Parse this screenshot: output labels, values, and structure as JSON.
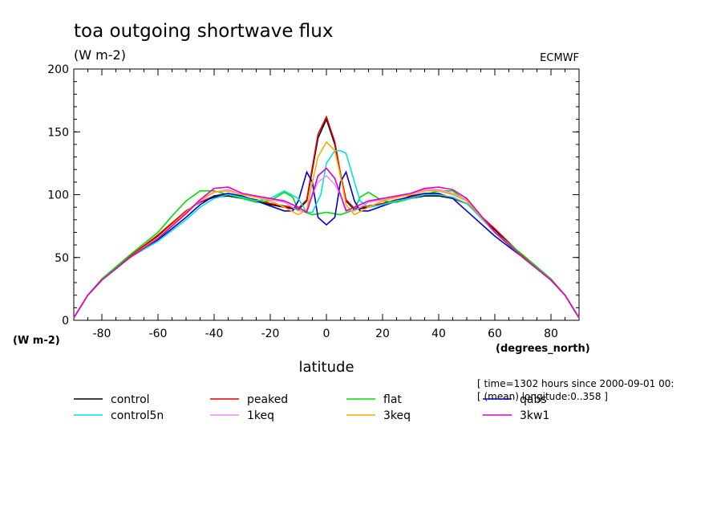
{
  "chart_data": {
    "type": "line",
    "title": "toa outgoing shortwave flux",
    "units": "(W m-2)",
    "source": "ECMWF",
    "ylabel_bottom": "(W m-2)",
    "xunits": "(degrees_north)",
    "xlabel": "latitude",
    "info_lines": [
      "[ time=1302 hours since 2000-09-01 00:",
      "[ (mean) longitude:0..358 ]"
    ],
    "xlim": [
      -90,
      90
    ],
    "ylim": [
      0,
      200
    ],
    "xticks": [
      -80,
      -60,
      -40,
      -20,
      0,
      20,
      40,
      60,
      80
    ],
    "yticks": [
      0,
      50,
      100,
      150,
      200
    ],
    "series": [
      {
        "name": "control",
        "color": "#000000",
        "x": [
          -90,
          -85,
          -80,
          -70,
          -60,
          -50,
          -45,
          -40,
          -35,
          -30,
          -25,
          -20,
          -15,
          -10,
          -7,
          -5,
          -3,
          0,
          3,
          5,
          7,
          10,
          15,
          20,
          25,
          30,
          35,
          40,
          45,
          50,
          60,
          70,
          80,
          85,
          90
        ],
        "y": [
          2,
          20,
          32,
          50,
          67,
          87,
          94,
          98,
          99,
          97,
          95,
          92,
          90,
          88,
          95,
          120,
          145,
          160,
          140,
          115,
          95,
          88,
          90,
          92,
          95,
          97,
          99,
          99,
          97,
          93,
          72,
          50,
          32,
          20,
          2
        ]
      },
      {
        "name": "peaked",
        "color": "#e60000",
        "x": [
          -90,
          -85,
          -80,
          -70,
          -60,
          -50,
          -45,
          -40,
          -35,
          -30,
          -25,
          -20,
          -15,
          -10,
          -7,
          -5,
          -3,
          0,
          3,
          5,
          7,
          10,
          15,
          20,
          25,
          30,
          35,
          40,
          45,
          50,
          60,
          70,
          80,
          85,
          90
        ],
        "y": [
          2,
          20,
          33,
          51,
          68,
          87,
          94,
          99,
          100,
          98,
          96,
          93,
          91,
          89,
          96,
          122,
          148,
          162,
          142,
          117,
          96,
          89,
          91,
          93,
          96,
          98,
          100,
          100,
          97,
          93,
          73,
          51,
          33,
          20,
          2
        ]
      },
      {
        "name": "flat",
        "color": "#00dd00",
        "x": [
          -90,
          -85,
          -80,
          -70,
          -60,
          -55,
          -50,
          -45,
          -40,
          -35,
          -30,
          -25,
          -20,
          -15,
          -12,
          -10,
          -5,
          0,
          5,
          10,
          12,
          15,
          20,
          25,
          30,
          35,
          40,
          45,
          50,
          55,
          60,
          70,
          80,
          85,
          90
        ],
        "y": [
          2,
          20,
          33,
          52,
          70,
          83,
          95,
          103,
          103,
          100,
          97,
          94,
          95,
          102,
          98,
          88,
          84,
          86,
          84,
          88,
          98,
          102,
          95,
          94,
          97,
          100,
          103,
          103,
          95,
          83,
          70,
          52,
          33,
          20,
          2
        ]
      },
      {
        "name": "qabs",
        "color": "#0000cc",
        "x": [
          -90,
          -85,
          -80,
          -70,
          -60,
          -50,
          -45,
          -40,
          -35,
          -30,
          -25,
          -20,
          -15,
          -12,
          -10,
          -7,
          -5,
          -3,
          0,
          3,
          5,
          7,
          10,
          12,
          15,
          20,
          25,
          30,
          35,
          40,
          45,
          50,
          60,
          70,
          80,
          85,
          90
        ],
        "y": [
          2,
          20,
          32,
          50,
          64,
          82,
          92,
          99,
          101,
          99,
          95,
          91,
          87,
          87,
          95,
          118,
          110,
          82,
          76,
          82,
          110,
          118,
          95,
          87,
          87,
          91,
          95,
          99,
          101,
          101,
          97,
          87,
          67,
          50,
          32,
          20,
          2
        ]
      },
      {
        "name": "control5n",
        "color": "#00e0e0",
        "x": [
          -90,
          -85,
          -80,
          -70,
          -60,
          -50,
          -45,
          -40,
          -35,
          -30,
          -25,
          -20,
          -15,
          -10,
          -7,
          -5,
          -2,
          0,
          3,
          5,
          7,
          10,
          12,
          15,
          20,
          25,
          30,
          35,
          40,
          45,
          50,
          60,
          70,
          80,
          85,
          90
        ],
        "y": [
          2,
          20,
          32,
          50,
          63,
          80,
          90,
          97,
          100,
          98,
          95,
          97,
          103,
          97,
          86,
          86,
          100,
          125,
          135,
          135,
          133,
          110,
          95,
          90,
          92,
          95,
          97,
          100,
          100,
          98,
          93,
          70,
          50,
          32,
          20,
          2
        ]
      },
      {
        "name": "1keq",
        "color": "#ee90ee",
        "x": [
          -90,
          -85,
          -80,
          -70,
          -60,
          -50,
          -45,
          -40,
          -35,
          -30,
          -25,
          -20,
          -15,
          -10,
          -7,
          -5,
          -3,
          0,
          3,
          5,
          7,
          10,
          15,
          20,
          25,
          30,
          35,
          40,
          45,
          50,
          60,
          70,
          80,
          85,
          90
        ],
        "y": [
          2,
          20,
          32,
          50,
          66,
          85,
          95,
          102,
          104,
          100,
          98,
          96,
          94,
          87,
          88,
          100,
          110,
          115,
          108,
          100,
          88,
          87,
          94,
          96,
          98,
          100,
          104,
          104,
          101,
          96,
          70,
          50,
          32,
          20,
          2
        ]
      },
      {
        "name": "3keq",
        "color": "#ffaa00",
        "x": [
          -90,
          -85,
          -80,
          -70,
          -60,
          -50,
          -45,
          -40,
          -35,
          -30,
          -25,
          -20,
          -15,
          -10,
          -7,
          -5,
          -3,
          0,
          3,
          5,
          7,
          10,
          15,
          20,
          25,
          30,
          35,
          40,
          45,
          50,
          60,
          70,
          80,
          85,
          90
        ],
        "y": [
          2,
          20,
          32,
          50,
          66,
          86,
          96,
          102,
          103,
          100,
          98,
          95,
          90,
          84,
          88,
          110,
          130,
          142,
          135,
          115,
          92,
          84,
          90,
          95,
          98,
          100,
          103,
          103,
          100,
          95,
          70,
          50,
          32,
          20,
          2
        ]
      },
      {
        "name": "3kw1",
        "color": "#dd00cc",
        "x": [
          -90,
          -85,
          -80,
          -70,
          -60,
          -50,
          -45,
          -40,
          -35,
          -30,
          -25,
          -20,
          -15,
          -10,
          -7,
          -5,
          -3,
          0,
          3,
          5,
          7,
          10,
          15,
          20,
          25,
          30,
          35,
          40,
          45,
          50,
          60,
          70,
          80,
          85,
          90
        ],
        "y": [
          2,
          20,
          32,
          50,
          65,
          85,
          96,
          105,
          106,
          101,
          99,
          97,
          95,
          90,
          86,
          100,
          115,
          121,
          113,
          100,
          87,
          90,
          95,
          97,
          99,
          101,
          105,
          106,
          104,
          97,
          70,
          50,
          32,
          20,
          2
        ]
      }
    ]
  }
}
